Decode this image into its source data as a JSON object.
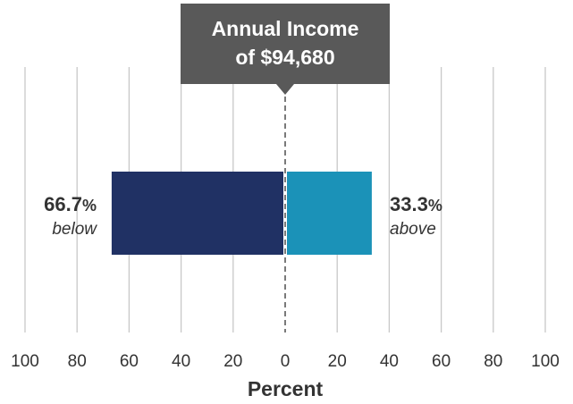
{
  "callout": {
    "line1": "Annual Income",
    "line2": "of $94,680",
    "color": "#595959"
  },
  "chart_data": {
    "type": "bar",
    "orientation": "horizontal-diverging",
    "xlabel": "Percent",
    "xlim": [
      -100,
      100
    ],
    "tick_labels": [
      "100",
      "80",
      "60",
      "40",
      "20",
      "0",
      "20",
      "40",
      "60",
      "80",
      "100"
    ],
    "grid": true,
    "center_line": "dashed",
    "series": [
      {
        "direction": "left",
        "value": 66.7,
        "value_text": "66.7",
        "unit": "%",
        "word": "below",
        "color": "#203164"
      },
      {
        "direction": "right",
        "value": 33.3,
        "value_text": "33.3",
        "unit": "%",
        "word": "above",
        "color": "#1b92b8"
      }
    ]
  }
}
